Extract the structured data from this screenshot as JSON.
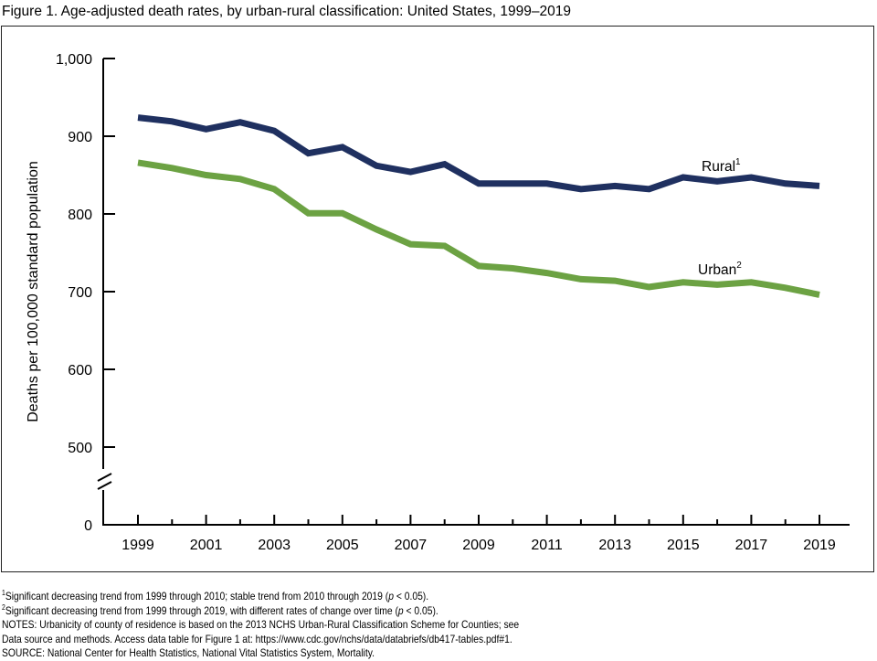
{
  "title": "Figure 1. Age-adjusted death rates, by urban-rural classification: United States, 1999–2019",
  "chart_data": {
    "type": "line",
    "title": "Figure 1. Age-adjusted death rates, by urban-rural classification: United States, 1999–2019",
    "xlabel": "",
    "ylabel": "Deaths per 100,000 standard population",
    "x": [
      1999,
      2000,
      2001,
      2002,
      2003,
      2004,
      2005,
      2006,
      2007,
      2008,
      2009,
      2010,
      2011,
      2012,
      2013,
      2014,
      2015,
      2016,
      2017,
      2018,
      2019
    ],
    "xtick_labels": [
      "1999",
      "2001",
      "2003",
      "2005",
      "2007",
      "2009",
      "2011",
      "2013",
      "2015",
      "2017",
      "2019"
    ],
    "ytick_labels": [
      "1,000",
      "900",
      "800",
      "700",
      "600",
      "500",
      "0"
    ],
    "yticks": [
      1000,
      900,
      800,
      700,
      600,
      500,
      0
    ],
    "ylim": [
      0,
      1000
    ],
    "axis_break": "between 0 and 500",
    "grid": false,
    "series": [
      {
        "name": "Rural",
        "label": "Rural",
        "footnote_mark": "1",
        "color": "#1f3060",
        "values": [
          924,
          919,
          909,
          918,
          907,
          878,
          886,
          862,
          854,
          864,
          839,
          839,
          839,
          832,
          836,
          832,
          847,
          842,
          847,
          839,
          836
        ]
      },
      {
        "name": "Urban",
        "label": "Urban",
        "footnote_mark": "2",
        "color": "#6ca243",
        "values": [
          866,
          859,
          850,
          845,
          832,
          801,
          801,
          780,
          761,
          759,
          733,
          730,
          724,
          716,
          714,
          706,
          712,
          709,
          712,
          705,
          696
        ]
      }
    ]
  },
  "notes": {
    "fn1_mark": "1",
    "fn1_text": "Significant decreasing trend from 1999 through 2010; stable trend from 2010 through 2019 (",
    "fn1_p": "p",
    "fn1_end": " < 0.05).",
    "fn2_mark": "2",
    "fn2_text": "Significant decreasing trend from 1999 through 2019, with different rates of change over time (",
    "fn2_p": "p",
    "fn2_end": " < 0.05).",
    "notes_line1": "NOTES: Urbanicity of county of residence is based on the 2013 NCHS Urban-Rural Classification Scheme for Counties; see",
    "notes_line2": "Data source and methods. Access data table for Figure 1 at: https://www.cdc.gov/nchs/data/databriefs/db417-tables.pdf#1.",
    "source": "SOURCE: National Center for Health Statistics, National Vital Statistics System, Mortality."
  }
}
